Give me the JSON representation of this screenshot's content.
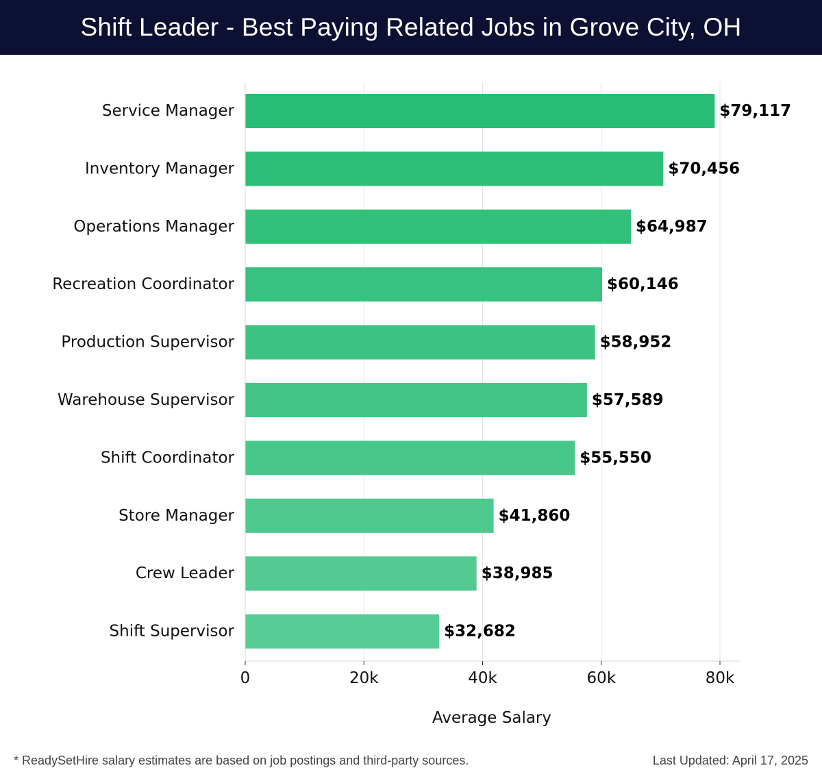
{
  "header": {
    "title": "Shift Leader - Best Paying Related Jobs in Grove City, OH"
  },
  "footer": {
    "note": "* ReadySetHire salary estimates are based on job postings and third-party sources.",
    "updated": "Last Updated: April 17, 2025"
  },
  "chart_data": {
    "type": "bar",
    "orientation": "horizontal",
    "categories": [
      "Service Manager",
      "Inventory Manager",
      "Operations Manager",
      "Recreation Coordinator",
      "Production Supervisor",
      "Warehouse Supervisor",
      "Shift Coordinator",
      "Store Manager",
      "Crew Leader",
      "Shift Supervisor"
    ],
    "values": [
      79117,
      70456,
      64987,
      60146,
      58952,
      57589,
      55550,
      41860,
      38985,
      32682
    ],
    "value_labels": [
      "$79,117",
      "$70,456",
      "$64,987",
      "$60,146",
      "$58,952",
      "$57,589",
      "$55,550",
      "$41,860",
      "$38,985",
      "$32,682"
    ],
    "xlabel": "Average Salary",
    "ylabel": "",
    "xlim": [
      0,
      83000
    ],
    "xticks": [
      0,
      20000,
      40000,
      60000,
      80000
    ],
    "xtick_labels": [
      "0",
      "20k",
      "40k",
      "60k",
      "80k"
    ],
    "grid": "vertical",
    "colors": {
      "bar_top": "#27bd74",
      "bar_bottom": "#58cc95",
      "grid": "#e3e3e3"
    }
  }
}
